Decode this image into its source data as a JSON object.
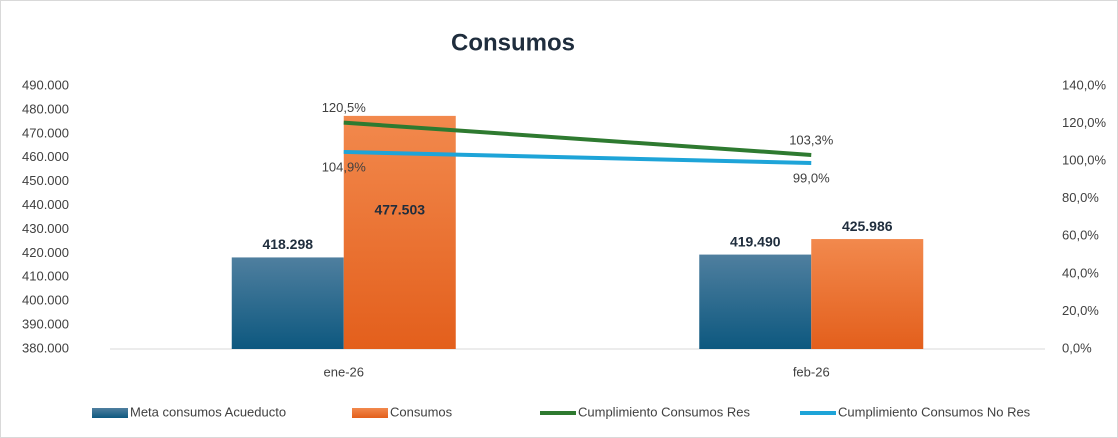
{
  "chart_data": {
    "type": "bar",
    "title": "Consumos",
    "categories": [
      "ene-26",
      "feb-26"
    ],
    "series": [
      {
        "name": "Meta consumos Acueducto",
        "type": "bar",
        "color": "#1f5f84",
        "values": [
          418298,
          419490
        ],
        "value_labels": [
          "418.298",
          "419.490"
        ]
      },
      {
        "name": "Consumos",
        "type": "bar",
        "color": "#ec6c2c",
        "values": [
          477503,
          425986
        ],
        "value_labels": [
          "477.503",
          "425.986"
        ]
      },
      {
        "name": "Cumplimiento Consumos Res",
        "type": "line",
        "axis": "y2",
        "color": "#2e7a30",
        "values": [
          120.5,
          103.3
        ],
        "value_labels": [
          "120,5%",
          "103,3%"
        ]
      },
      {
        "name": "Cumplimiento Consumos No Res",
        "type": "line",
        "axis": "y2",
        "color": "#1ea4d8",
        "values": [
          104.9,
          99.0
        ],
        "value_labels": [
          "104,9%",
          "99,0%"
        ]
      }
    ],
    "ylim": [
      380000,
      490000
    ],
    "yticks": [
      {
        "value": 380000,
        "label": "380.000"
      },
      {
        "value": 390000,
        "label": "390.000"
      },
      {
        "value": 400000,
        "label": "400.000"
      },
      {
        "value": 410000,
        "label": "410.000"
      },
      {
        "value": 420000,
        "label": "420.000"
      },
      {
        "value": 430000,
        "label": "430.000"
      },
      {
        "value": 440000,
        "label": "440.000"
      },
      {
        "value": 450000,
        "label": "450.000"
      },
      {
        "value": 460000,
        "label": "460.000"
      },
      {
        "value": 470000,
        "label": "470.000"
      },
      {
        "value": 480000,
        "label": "480.000"
      },
      {
        "value": 490000,
        "label": "490.000"
      }
    ],
    "y2lim": [
      0,
      140
    ],
    "y2ticks": [
      {
        "value": 0,
        "label": "0,0%"
      },
      {
        "value": 20,
        "label": "20,0%"
      },
      {
        "value": 40,
        "label": "40,0%"
      },
      {
        "value": 60,
        "label": "60,0%"
      },
      {
        "value": 80,
        "label": "80,0%"
      },
      {
        "value": 100,
        "label": "100,0%"
      },
      {
        "value": 120,
        "label": "120,0%"
      },
      {
        "value": 140,
        "label": "140,0%"
      }
    ],
    "legend": "bottom"
  }
}
